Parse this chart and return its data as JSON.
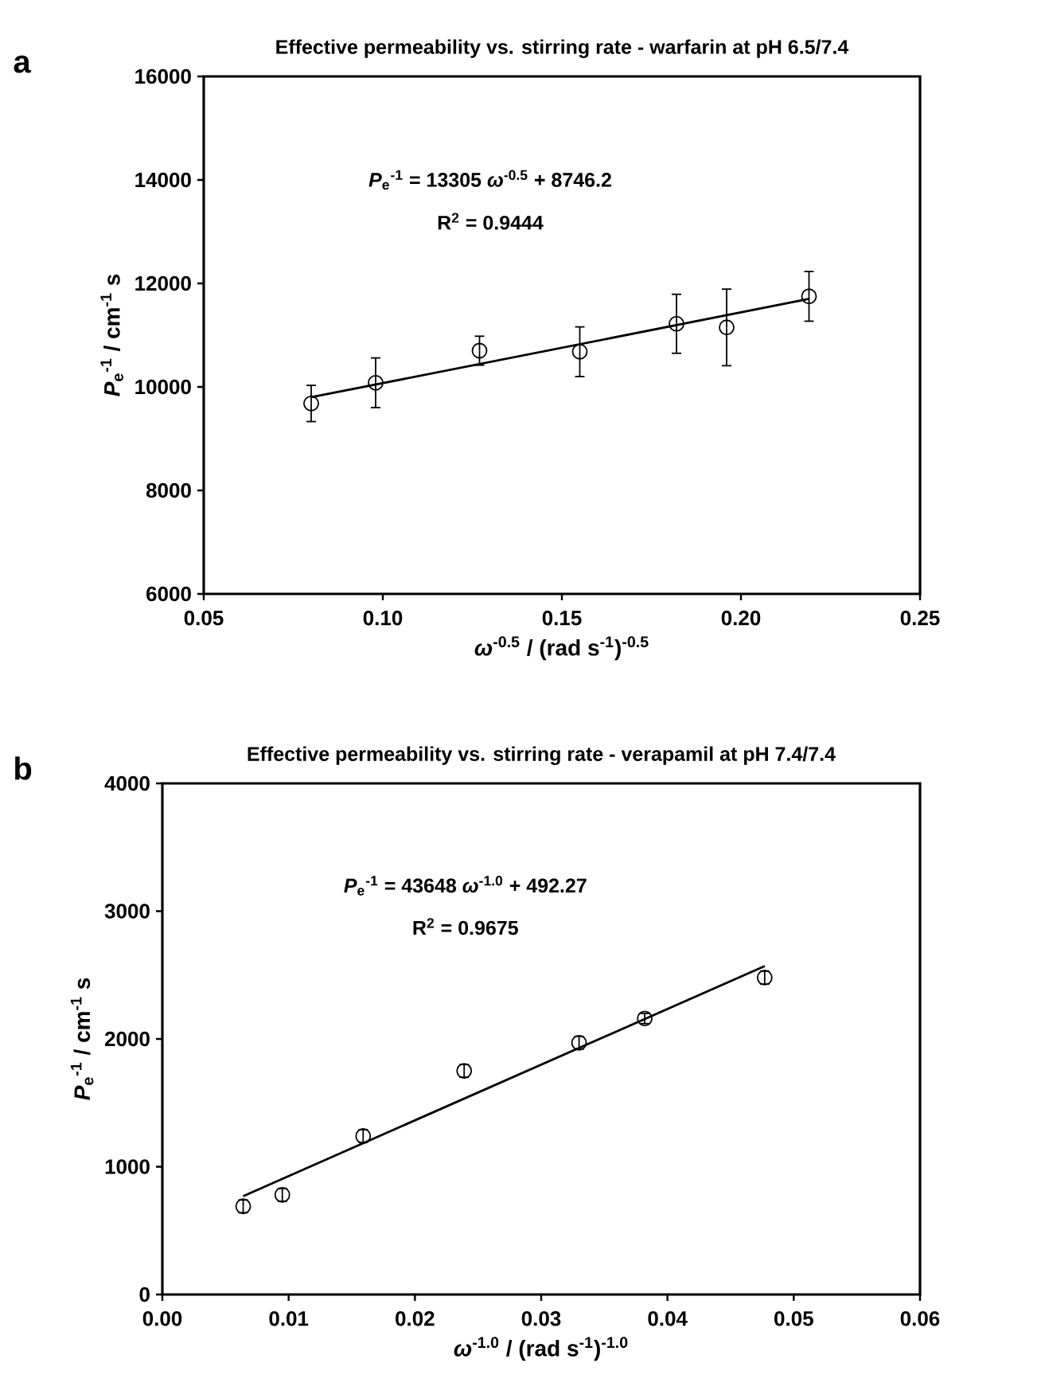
{
  "chart_data": [
    {
      "type": "scatter",
      "title": "Effective permeability vs. stirring rate - warfarin at pH 6.5/7.4",
      "xlabel": "*ω*$^{-0.5}$ / (rad s$^{-1}$)$^{-0.5}$",
      "ylabel": "*P*$_{e}$$^{-1}$ / cm$^{-1}$ s",
      "annotations": [
        "a",
        "*P*$_{e}$$^{-1}$ = 13305 *ω*$^{-0.5}$ + 8746.2",
        "R$^{2}$ = 0.9444"
      ],
      "xlim": [
        0.05,
        0.25
      ],
      "ylim": [
        6000,
        16000
      ],
      "xticks": [
        {
          "value": 0.05,
          "label": "0.05"
        },
        {
          "value": 0.1,
          "label": "0.10"
        },
        {
          "value": 0.15,
          "label": "0.15"
        },
        {
          "value": 0.2,
          "label": "0.20"
        },
        {
          "value": 0.25,
          "label": "0.25"
        }
      ],
      "yticks": [
        6000,
        8000,
        10000,
        12000,
        14000,
        16000
      ],
      "series": [
        {
          "type": "scatter",
          "color": "#000000",
          "marker": "circle",
          "x": [
            0.08,
            0.098,
            0.127,
            0.155,
            0.182,
            0.196,
            0.219
          ],
          "values": [
            9680,
            10080,
            10700,
            10680,
            11220,
            11150,
            11750
          ],
          "errors": [
            350,
            480,
            280,
            480,
            570,
            740,
            480
          ]
        },
        {
          "type": "line",
          "color": "#000000",
          "marker": "none",
          "line_style": "solid",
          "x": [
            0.08,
            0.219
          ],
          "values": [
            9800,
            11700
          ]
        }
      ]
    },
    {
      "type": "scatter",
      "title": "Effective permeability vs. stirring rate - verapamil at pH 7.4/7.4",
      "xlabel": "*ω*$^{-1.0}$ / (rad s$^{-1}$)$^{-1.0}$",
      "ylabel": "*P*$_{e}$$^{-1}$ / cm$^{-1}$ s",
      "annotations": [
        "b",
        "*P*$_{e}$$^{-1}$ = 43648 *ω*$^{-1.0}$ + 492.27",
        "R$^{2}$ = 0.9675"
      ],
      "xlim": [
        0,
        0.06
      ],
      "ylim": [
        0,
        4000
      ],
      "xticks": [
        {
          "value": 0,
          "label": "0.00"
        },
        {
          "value": 0.01,
          "label": "0.01"
        },
        {
          "value": 0.02,
          "label": "0.02"
        },
        {
          "value": 0.03,
          "label": "0.03"
        },
        {
          "value": 0.04,
          "label": "0.04"
        },
        {
          "value": 0.05,
          "label": "0.05"
        },
        {
          "value": 0.06,
          "label": "0.06"
        }
      ],
      "yticks": [
        0,
        1000,
        2000,
        3000,
        4000
      ],
      "series": [
        {
          "type": "scatter",
          "color": "#000000",
          "marker": "circle",
          "x": [
            0.0064,
            0.0095,
            0.0159,
            0.0239,
            0.033,
            0.0382,
            0.0477
          ],
          "values": [
            690,
            780,
            1240,
            1750,
            1970,
            2160,
            2480
          ],
          "errors": [
            50,
            50,
            50,
            50,
            50,
            40,
            50
          ]
        },
        {
          "type": "line",
          "color": "#000000",
          "marker": "none",
          "line_style": "solid",
          "x": [
            0.0064,
            0.0477
          ],
          "values": [
            770,
            2570
          ]
        }
      ]
    }
  ]
}
